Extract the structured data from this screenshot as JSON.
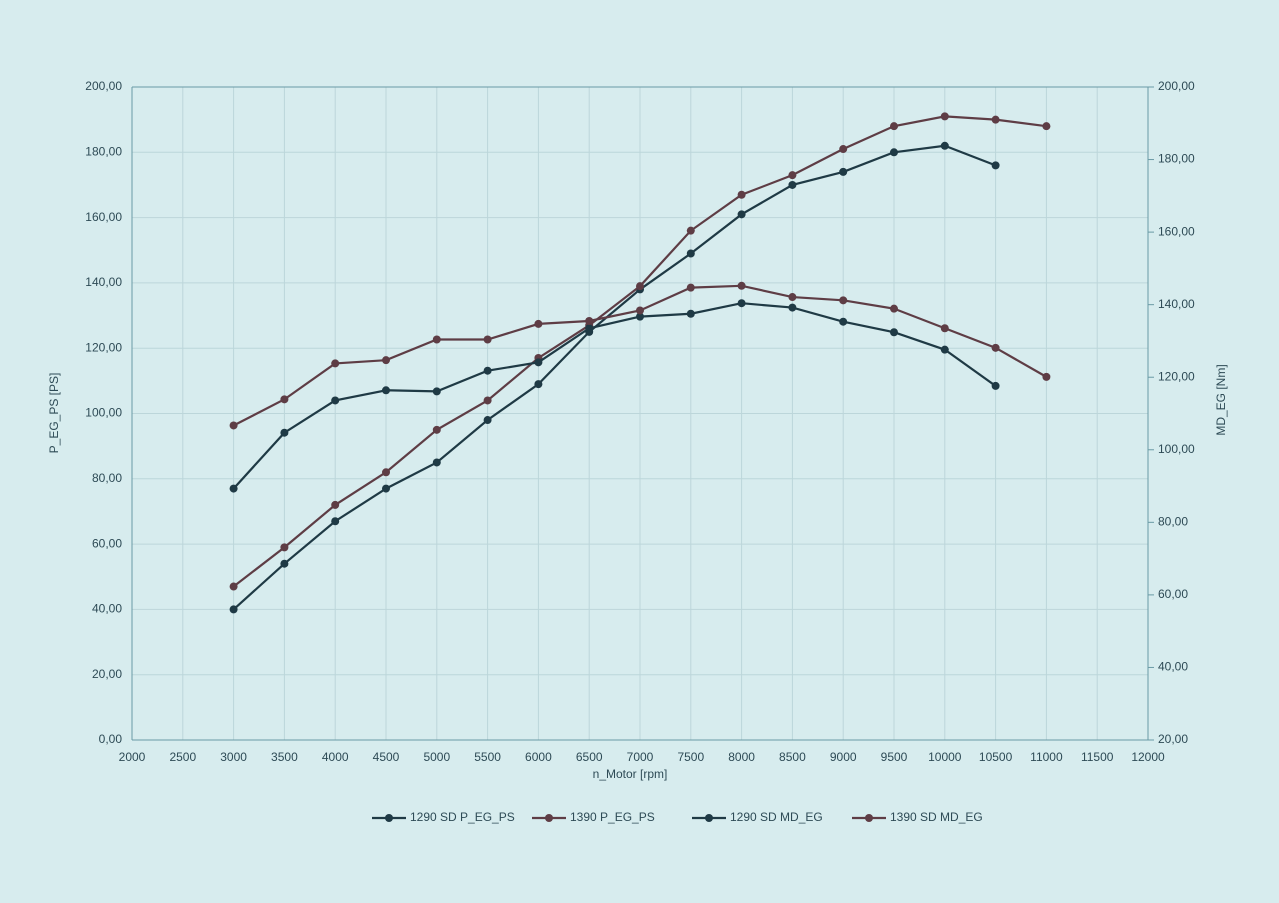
{
  "chart_data": {
    "type": "line",
    "xlabel": "n_Motor [rpm]",
    "ylabel": "P_EG_PS [PS]",
    "y2label": "MD_EG [Nm]",
    "x": [
      3000,
      3500,
      4000,
      4500,
      5000,
      5500,
      6000,
      6500,
      7000,
      7500,
      8000,
      8500,
      9000,
      9500,
      10000,
      10500,
      11000
    ],
    "series": [
      {
        "name": "1290 SD P_EG_PS",
        "color": "#1f3a45",
        "axis": "y",
        "values": [
          40,
          54,
          67,
          77,
          85,
          98,
          109,
          125,
          138,
          149,
          161,
          170,
          174,
          180,
          182,
          176,
          null
        ]
      },
      {
        "name": "1390 P_EG_PS",
        "color": "#5e3d45",
        "axis": "y",
        "values": [
          47,
          59,
          72,
          82,
          95,
          104,
          117,
          127,
          139,
          156,
          167,
          173,
          181,
          188,
          191,
          190,
          188
        ]
      },
      {
        "name": "1290 SD MD_EG",
        "color": "#1f3a45",
        "axis": "y2",
        "values": [
          89.3,
          104.7,
          113.6,
          116.4,
          116.1,
          121.8,
          124.1,
          133.5,
          136.7,
          137.5,
          140.4,
          139.2,
          135.3,
          132.4,
          127.6,
          117.6,
          null
        ]
      },
      {
        "name": "1390 SD MD_EG",
        "color": "#5e3d45",
        "axis": "y2",
        "values": [
          106.7,
          113.9,
          123.8,
          124.7,
          130.4,
          130.4,
          134.7,
          135.5,
          138.4,
          144.7,
          145.2,
          142.1,
          141.2,
          138.9,
          133.5,
          128.1,
          120.1
        ]
      }
    ],
    "xlim": [
      2000,
      12000
    ],
    "xticks": [
      2000,
      2500,
      3000,
      3500,
      4000,
      4500,
      5000,
      5500,
      6000,
      6500,
      7000,
      7500,
      8000,
      8500,
      9000,
      9500,
      10000,
      10500,
      11000,
      11500,
      12000
    ],
    "ylim": [
      0,
      200
    ],
    "yticks": [
      {
        "value": 0,
        "label": "0,00"
      },
      {
        "value": 20,
        "label": "20,00"
      },
      {
        "value": 40,
        "label": "40,00"
      },
      {
        "value": 60,
        "label": "60,00"
      },
      {
        "value": 80,
        "label": "80,00"
      },
      {
        "value": 100,
        "label": "100,00"
      },
      {
        "value": 120,
        "label": "120,00"
      },
      {
        "value": 140,
        "label": "140,00"
      },
      {
        "value": 160,
        "label": "160,00"
      },
      {
        "value": 180,
        "label": "180,00"
      },
      {
        "value": 200,
        "label": "200,00"
      }
    ],
    "y2lim": [
      20,
      200
    ],
    "y2ticks": [
      {
        "value": 20,
        "label": "20,00"
      },
      {
        "value": 40,
        "label": "40,00"
      },
      {
        "value": 60,
        "label": "60,00"
      },
      {
        "value": 80,
        "label": "80,00"
      },
      {
        "value": 100,
        "label": "100,00"
      },
      {
        "value": 120,
        "label": "120,00"
      },
      {
        "value": 140,
        "label": "140,00"
      },
      {
        "value": 160,
        "label": "160,00"
      },
      {
        "value": 180,
        "label": "180,00"
      },
      {
        "value": 200,
        "label": "200,00"
      }
    ],
    "grid": true
  }
}
